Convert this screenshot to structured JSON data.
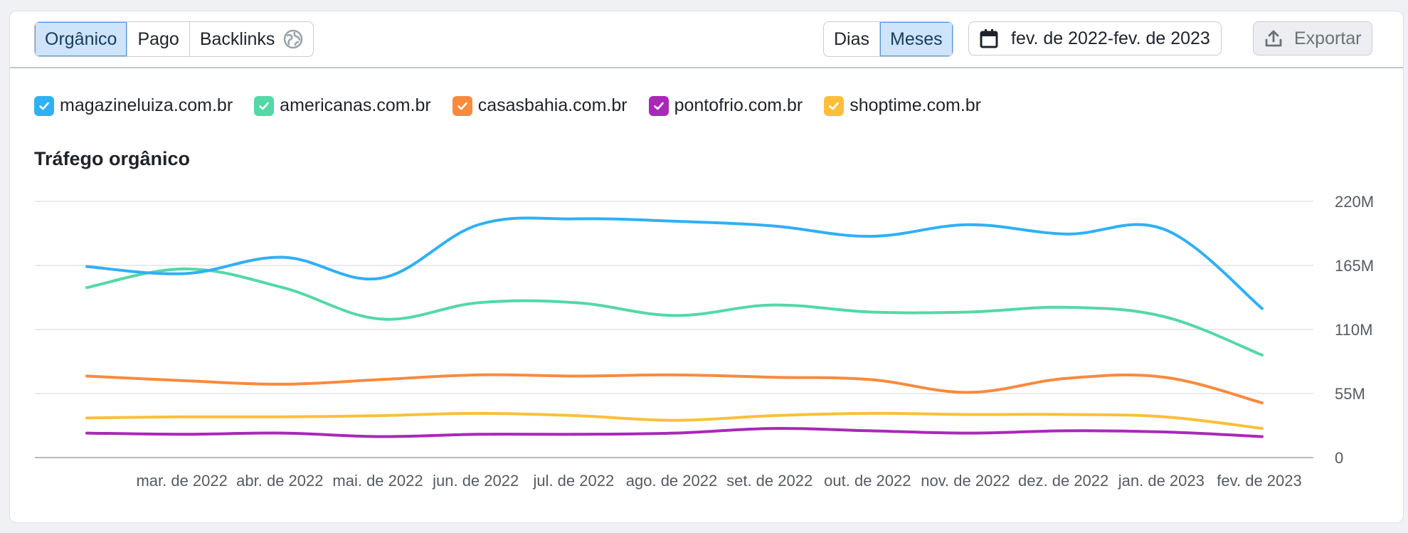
{
  "toolbar": {
    "tabs": [
      "Orgânico",
      "Pago",
      "Backlinks"
    ],
    "period": [
      "Dias",
      "Meses"
    ],
    "date_range": "fev. de 2022-fev. de 2023",
    "export_label": "Exportar"
  },
  "colors": {
    "magazineluiza": "#2fb0f5",
    "americanas": "#54d8a6",
    "casasbahia": "#f98a3e",
    "pontofrio": "#a928b8",
    "shoptime": "#fbbf3a"
  },
  "chart_data": {
    "type": "line",
    "title": "Tráfego orgânico",
    "x": [
      "fev. de 2022",
      "mar. de 2022",
      "abr. de 2022",
      "mai. de 2022",
      "jun. de 2022",
      "jul. de 2022",
      "ago. de 2022",
      "set. de 2022",
      "out. de 2022",
      "nov. de 2022",
      "dez. de 2022",
      "jan. de 2023",
      "fev. de 2023"
    ],
    "x_tick_labels": [
      "mar. de 2022",
      "abr. de 2022",
      "mai. de 2022",
      "jun. de 2022",
      "jul. de 2022",
      "ago. de 2022",
      "set. de 2022",
      "out. de 2022",
      "nov. de 2022",
      "dez. de 2022",
      "jan. de 2023",
      "fev. de 2023"
    ],
    "y_ticks": [
      0,
      55,
      110,
      165,
      220
    ],
    "y_tick_labels": [
      "0",
      "55M",
      "110M",
      "165M",
      "220M"
    ],
    "ylim": [
      0,
      220
    ],
    "series": [
      {
        "name": "magazineluiza.com.br",
        "color": "#2fb0f5",
        "values": [
          164,
          158,
          172,
          154,
          200,
          205,
          203,
          199,
          190,
          200,
          192,
          196,
          128
        ]
      },
      {
        "name": "americanas.com.br",
        "color": "#54d8a6",
        "values": [
          146,
          162,
          146,
          119,
          133,
          133,
          122,
          131,
          125,
          125,
          129,
          121,
          88
        ]
      },
      {
        "name": "casasbahia.com.br",
        "color": "#f98a3e",
        "values": [
          70,
          66,
          63,
          67,
          71,
          70,
          71,
          69,
          67,
          56,
          68,
          69,
          47
        ]
      },
      {
        "name": "pontofrio.com.br",
        "color": "#a928b8",
        "values": [
          21,
          20,
          21,
          18,
          20,
          20,
          21,
          25,
          23,
          21,
          23,
          22,
          18
        ]
      },
      {
        "name": "shoptime.com.br",
        "color": "#fbbf3a",
        "values": [
          34,
          35,
          35,
          36,
          38,
          36,
          32,
          36,
          38,
          37,
          37,
          35,
          25
        ]
      }
    ]
  }
}
